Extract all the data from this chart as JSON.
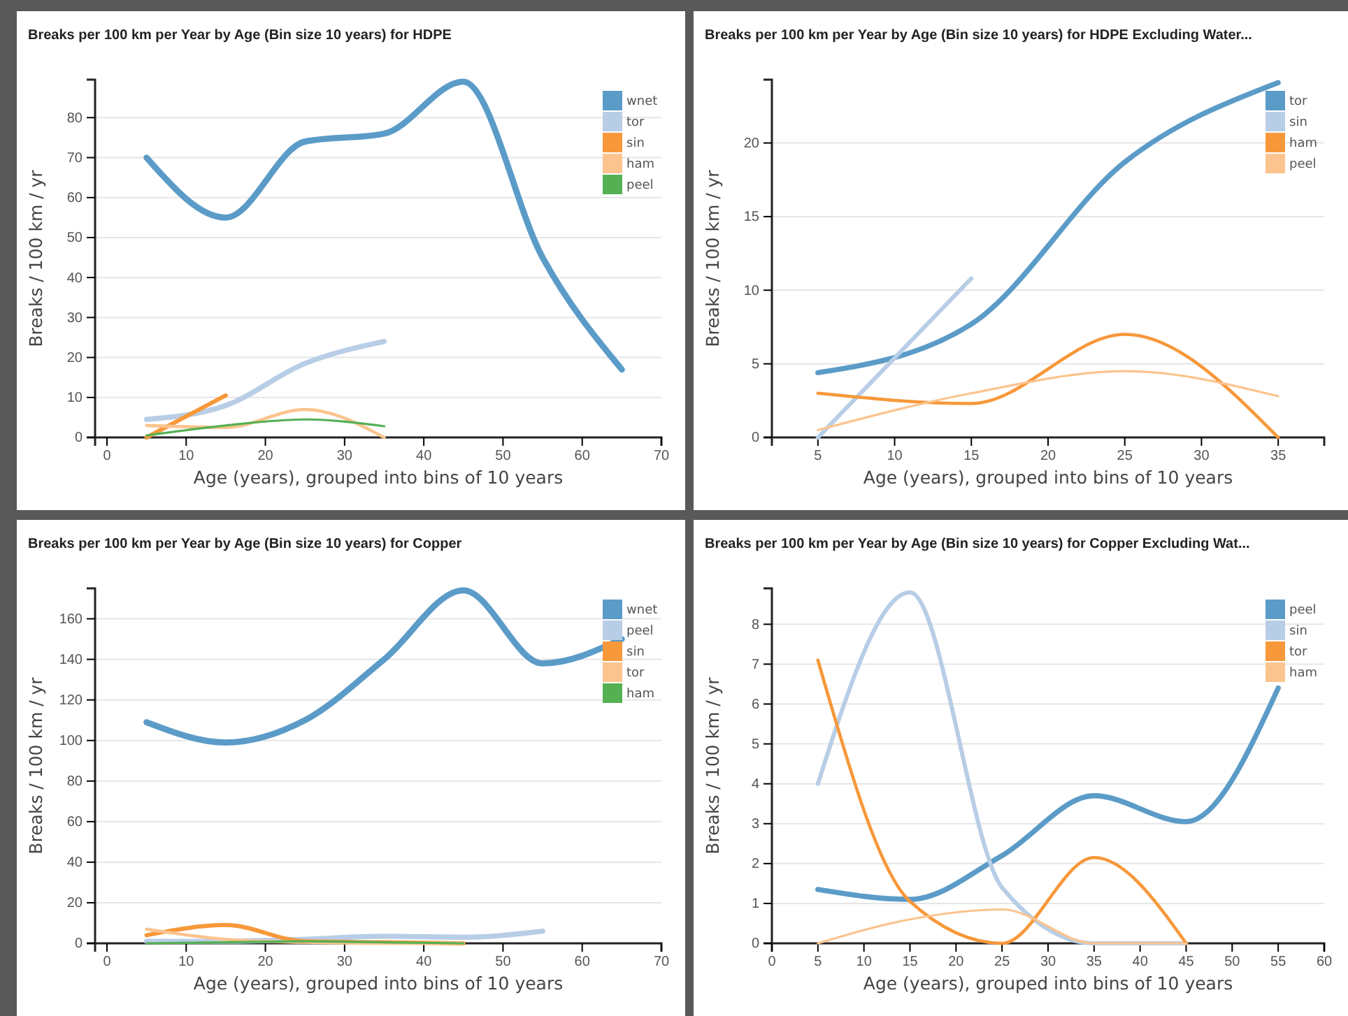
{
  "chart_data": [
    {
      "type": "line",
      "title": "Breaks per 100 km per Year by Age (Bin size 10 years) for HDPE",
      "xlabel": "Age (years), grouped into bins of 10 years",
      "ylabel": "Breaks / 100 km / yr",
      "x": [
        5,
        15,
        25,
        35,
        45,
        55,
        65
      ],
      "xlim": [
        -1.5,
        70
      ],
      "xticks": [
        0,
        10,
        20,
        30,
        40,
        50,
        60,
        70
      ],
      "ylim": [
        0,
        89.5
      ],
      "yticks": [
        0,
        10,
        20,
        30,
        40,
        50,
        60,
        70,
        80
      ],
      "grid": "y",
      "legend": "top right",
      "series": [
        {
          "name": "wnet",
          "color": "#5b9bc8",
          "values": [
            70,
            55,
            74,
            76,
            89,
            45,
            17
          ]
        },
        {
          "name": "tor",
          "color": "#b8cde6",
          "values": [
            4.5,
            8,
            18.5,
            24,
            null,
            null,
            null
          ]
        },
        {
          "name": "sin",
          "color": "#f7983a",
          "values": [
            0,
            10.5,
            null,
            null,
            null,
            null,
            null
          ]
        },
        {
          "name": "ham",
          "color": "#fbc48e",
          "values": [
            3,
            2.5,
            7,
            0,
            null,
            null,
            null
          ]
        },
        {
          "name": "peel",
          "color": "#55b054",
          "values": [
            0.5,
            3,
            4.5,
            2.8,
            null,
            null,
            null
          ]
        }
      ]
    },
    {
      "type": "line",
      "title": "Breaks per 100 km per Year by Age (Bin size 10 years) for HDPE Excluding Water...",
      "xlabel": "Age (years), grouped into bins of 10 years",
      "ylabel": "Breaks / 100 km / yr",
      "x": [
        5,
        15,
        25,
        35
      ],
      "xlim": [
        2,
        38
      ],
      "xticks": [
        5,
        10,
        15,
        20,
        25,
        30,
        35
      ],
      "ylim": [
        0,
        24.3
      ],
      "yticks": [
        0,
        5,
        10,
        15,
        20
      ],
      "grid": "y",
      "legend": "top right",
      "series": [
        {
          "name": "tor",
          "color": "#5b9bc8",
          "values": [
            4.4,
            7.7,
            18.7,
            24.1
          ]
        },
        {
          "name": "sin",
          "color": "#b8cde6",
          "values": [
            0,
            10.8,
            null,
            null
          ]
        },
        {
          "name": "ham",
          "color": "#f7983a",
          "values": [
            3,
            2.3,
            7,
            0
          ]
        },
        {
          "name": "peel",
          "color": "#fbc48e",
          "values": [
            0.5,
            3,
            4.5,
            2.8
          ]
        }
      ]
    },
    {
      "type": "line",
      "title": "Breaks per 100 km per Year by Age (Bin size 10 years) for Copper",
      "xlabel": "Age (years), grouped into bins of 10 years",
      "ylabel": "Breaks / 100 km / yr",
      "x": [
        5,
        15,
        25,
        35,
        45,
        55,
        65
      ],
      "xlim": [
        -1.5,
        70
      ],
      "xticks": [
        0,
        10,
        20,
        30,
        40,
        50,
        60,
        70
      ],
      "ylim": [
        0,
        175
      ],
      "yticks": [
        0,
        20,
        40,
        60,
        80,
        100,
        120,
        140,
        160
      ],
      "grid": "y",
      "legend": "top right",
      "series": [
        {
          "name": "wnet",
          "color": "#5b9bc8",
          "values": [
            109,
            99,
            110,
            140,
            174,
            138,
            150
          ]
        },
        {
          "name": "peel",
          "color": "#b8cde6",
          "values": [
            1,
            1,
            2,
            3.5,
            3,
            6,
            null
          ]
        },
        {
          "name": "sin",
          "color": "#f7983a",
          "values": [
            4,
            9,
            1,
            0.5,
            0,
            null,
            null
          ]
        },
        {
          "name": "tor",
          "color": "#fbc48e",
          "values": [
            7,
            2,
            0.5,
            0,
            0,
            null,
            null
          ]
        },
        {
          "name": "ham",
          "color": "#55b054",
          "values": [
            0,
            0.5,
            1,
            0.5,
            0,
            null,
            null
          ]
        }
      ]
    },
    {
      "type": "line",
      "title": "Breaks per 100 km per Year by Age (Bin size 10 years) for Copper Excluding Wat...",
      "xlabel": "Age (years), grouped into bins of 10 years",
      "ylabel": "Breaks / 100 km / yr",
      "x": [
        5,
        15,
        25,
        35,
        45,
        55
      ],
      "xlim": [
        0,
        60
      ],
      "xticks": [
        0,
        5,
        10,
        15,
        20,
        25,
        30,
        35,
        40,
        45,
        50,
        55,
        60
      ],
      "ylim": [
        0,
        8.9
      ],
      "yticks": [
        0,
        1,
        2,
        3,
        4,
        5,
        6,
        7,
        8
      ],
      "grid": "y",
      "legend": "top right",
      "series": [
        {
          "name": "peel",
          "color": "#5b9bc8",
          "values": [
            1.35,
            1.1,
            2.2,
            3.7,
            3.05,
            6.4
          ]
        },
        {
          "name": "sin",
          "color": "#b8cde6",
          "values": [
            4,
            8.8,
            1.4,
            0,
            0,
            null
          ]
        },
        {
          "name": "tor",
          "color": "#f7983a",
          "values": [
            7.1,
            1.05,
            0,
            2.15,
            0,
            null
          ]
        },
        {
          "name": "ham",
          "color": "#fbc48e",
          "values": [
            0,
            0.6,
            0.85,
            0,
            0,
            null
          ]
        }
      ]
    }
  ]
}
